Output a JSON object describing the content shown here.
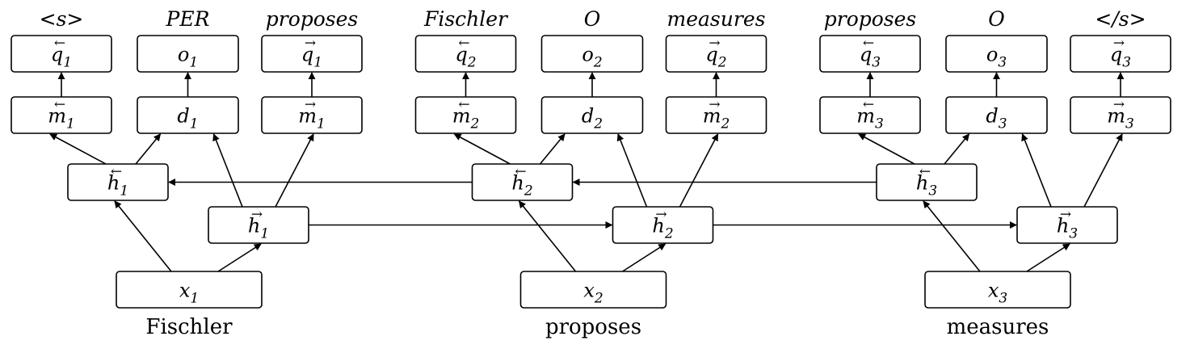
{
  "words": [
    "Fischler",
    "proposes",
    "measures"
  ],
  "output_labels": [
    [
      "<s>",
      "PER",
      "proposes"
    ],
    [
      "Fischler",
      "O",
      "measures"
    ],
    [
      "proposes",
      "O",
      "</s>"
    ]
  ],
  "nodes": {
    "x": "x",
    "h_backward": "h",
    "h_forward": "h",
    "m_backward": "m",
    "m_forward": "m",
    "d": "d",
    "q_backward": "q",
    "q_forward": "q",
    "o": "o"
  },
  "subscripts": [
    "1",
    "2",
    "3"
  ]
}
